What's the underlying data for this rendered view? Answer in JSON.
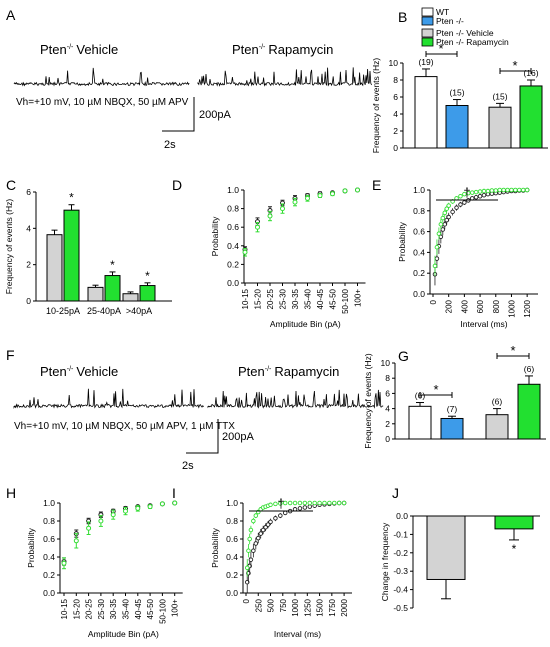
{
  "panel_letters": [
    "A",
    "B",
    "C",
    "D",
    "E",
    "F",
    "G",
    "H",
    "I",
    "J"
  ],
  "traces": {
    "A": {
      "vehicle_prefix": "Pten",
      "vehicle_sup": "-/-",
      "vehicle_suffix": "Vehicle",
      "rapa_prefix": "Pten",
      "rapa_sup": "-/-",
      "rapa_suffix": "Rapamycin",
      "conditions": "Vh=+10 mV, 10 µM NBQX, 50 µM APV",
      "scale_amp": "200pA",
      "scale_time": "2s"
    },
    "F": {
      "vehicle_prefix": "Pten",
      "vehicle_sup": "-/-",
      "vehicle_suffix": "Vehicle",
      "rapa_prefix": "Pten",
      "rapa_sup": "-/-",
      "rapa_suffix": "Rapamycin",
      "conditions": "Vh=+10 mV, 10 µM NBQX, 50 µM APV, 1 µM TTX",
      "scale_amp": "200pA",
      "scale_time": "2s"
    }
  },
  "legend": {
    "items": [
      {
        "label": "WT",
        "color": "#ffffff"
      },
      {
        "label": "Pten -/-",
        "color": "#3d9be9"
      },
      {
        "label": "Pten -/- Vehicle",
        "color": "#d3d3d3"
      },
      {
        "label": "Pten -/- Rapamycin",
        "color": "#22e030"
      }
    ]
  },
  "colors": {
    "wt": "#ffffff",
    "pten": "#3d9be9",
    "vehicle": "#d3d3d3",
    "rapamycin": "#22e030",
    "vehicle_marker": "#222222",
    "rapamycin_marker": "#33dd33"
  },
  "chart_data": [
    {
      "panel": "B",
      "type": "bar",
      "ylabel": "Frequency of events (Hz)",
      "ylim": [
        0,
        10
      ],
      "yticks": [
        "0",
        "2",
        "4",
        "6",
        "8",
        "10"
      ],
      "categories": [
        "WT",
        "Pten -/-",
        "Pten -/- Vehicle",
        "Pten -/- Rapamycin"
      ],
      "values": [
        8.4,
        5.0,
        4.8,
        7.3
      ],
      "errors": [
        0.9,
        0.7,
        0.45,
        0.7
      ],
      "n_labels": [
        "(19)",
        "(15)",
        "(15)",
        "(16)"
      ],
      "significance": [
        "*",
        "*"
      ]
    },
    {
      "panel": "C",
      "type": "bar",
      "ylabel": "Frequency of events (Hz)",
      "ylim": [
        0,
        6
      ],
      "yticks": [
        "0",
        "2",
        "4",
        "6"
      ],
      "categories": [
        "10-25pA",
        "25-40pA",
        ">40pA"
      ],
      "series": [
        {
          "values": [
            3.65,
            0.75,
            0.4
          ],
          "errors": [
            0.25,
            0.12,
            0.1
          ]
        },
        {
          "values": [
            5.0,
            1.4,
            0.85
          ],
          "errors": [
            0.3,
            0.2,
            0.15
          ]
        }
      ],
      "significance": [
        "*",
        "*",
        "*"
      ]
    },
    {
      "panel": "D",
      "type": "scatter",
      "ylabel": "Probability",
      "xlabel": "Amplitude Bin (pA)",
      "ylim": [
        0,
        1
      ],
      "yticks": [
        "0.0",
        "0.2",
        "0.4",
        "0.6",
        "0.8",
        "1.0"
      ],
      "categories": [
        "10-15",
        "15-20",
        "20-25",
        "25-30",
        "30-35",
        "35-40",
        "40-45",
        "45-50",
        "50-100",
        "100+"
      ],
      "series": [
        {
          "values": [
            0.36,
            0.66,
            0.78,
            0.86,
            0.91,
            0.94,
            0.96,
            0.97,
            0.99,
            1.0
          ],
          "errors": [
            0.03,
            0.04,
            0.04,
            0.03,
            0.03,
            0.02,
            0.02,
            0.01,
            0.01,
            0
          ]
        },
        {
          "values": [
            0.33,
            0.6,
            0.72,
            0.8,
            0.87,
            0.91,
            0.94,
            0.96,
            0.99,
            1.0
          ],
          "errors": [
            0.04,
            0.05,
            0.05,
            0.05,
            0.04,
            0.03,
            0.02,
            0.02,
            0.01,
            0
          ]
        }
      ]
    },
    {
      "panel": "E",
      "type": "scatter",
      "ylabel": "Probability",
      "xlabel": "Interval (ms)",
      "ylim": [
        0,
        1
      ],
      "xlim": [
        0,
        1300
      ],
      "yticks": [
        "0.0",
        "0.2",
        "0.4",
        "0.6",
        "0.8",
        "1.0"
      ],
      "xticks": [
        "0",
        "200",
        "400",
        "600",
        "800",
        "1000",
        "1200"
      ],
      "annotation": "†",
      "series": [
        {
          "x": [
            25,
            50,
            75,
            100,
            125,
            150,
            175,
            200,
            250,
            300,
            350,
            400,
            450,
            500,
            550,
            600,
            650,
            700,
            750,
            800,
            850,
            900,
            950,
            1000,
            1050,
            1100,
            1150,
            1200
          ],
          "values": [
            0.19,
            0.34,
            0.46,
            0.55,
            0.62,
            0.67,
            0.71,
            0.74,
            0.79,
            0.83,
            0.86,
            0.88,
            0.9,
            0.92,
            0.93,
            0.94,
            0.95,
            0.96,
            0.965,
            0.97,
            0.975,
            0.98,
            0.985,
            0.99,
            0.99,
            0.995,
            0.995,
            1.0
          ]
        },
        {
          "x": [
            25,
            50,
            75,
            100,
            125,
            150,
            175,
            200,
            250,
            300,
            350,
            400,
            450,
            500,
            550,
            600,
            650,
            700,
            750,
            800,
            850,
            900,
            950,
            1000,
            1050,
            1100,
            1150,
            1200
          ],
          "values": [
            0.27,
            0.45,
            0.58,
            0.67,
            0.73,
            0.78,
            0.82,
            0.85,
            0.89,
            0.92,
            0.94,
            0.96,
            0.97,
            0.975,
            0.98,
            0.985,
            0.99,
            0.99,
            0.995,
            0.995,
            1.0,
            1.0,
            1.0,
            1.0,
            1.0,
            1.0,
            1.0,
            1.0
          ]
        }
      ]
    },
    {
      "panel": "G",
      "type": "bar",
      "ylabel": "Frequency of events (Hz)",
      "ylim": [
        0,
        10
      ],
      "yticks": [
        "0",
        "2",
        "4",
        "6",
        "8",
        "10"
      ],
      "categories": [
        "WT",
        "Pten -/-",
        "Pten -/- Vehicle",
        "Pten -/- Rapamycin"
      ],
      "values": [
        4.3,
        2.7,
        3.2,
        7.2
      ],
      "errors": [
        0.5,
        0.3,
        0.8,
        1.1
      ],
      "n_labels": [
        "(6)",
        "(7)",
        "(6)",
        "(6)"
      ],
      "significance": [
        "*",
        "*"
      ]
    },
    {
      "panel": "H",
      "type": "scatter",
      "ylabel": "Probability",
      "xlabel": "Amplitude Bin (pA)",
      "ylim": [
        0,
        1
      ],
      "yticks": [
        "0.0",
        "0.2",
        "0.4",
        "0.6",
        "0.8",
        "1.0"
      ],
      "categories": [
        "10-15",
        "15-20",
        "20-25",
        "25-30",
        "30-35",
        "35-40",
        "40-45",
        "45-50",
        "50-100",
        "100+"
      ],
      "series": [
        {
          "values": [
            0.35,
            0.66,
            0.8,
            0.87,
            0.91,
            0.94,
            0.96,
            0.97,
            0.99,
            1.0
          ],
          "errors": [
            0.04,
            0.04,
            0.03,
            0.03,
            0.02,
            0.02,
            0.01,
            0.01,
            0.01,
            0
          ]
        },
        {
          "values": [
            0.33,
            0.58,
            0.72,
            0.8,
            0.87,
            0.91,
            0.94,
            0.96,
            0.99,
            1.0
          ],
          "errors": [
            0.06,
            0.08,
            0.07,
            0.06,
            0.05,
            0.04,
            0.03,
            0.02,
            0.01,
            0
          ]
        }
      ]
    },
    {
      "panel": "I",
      "type": "scatter",
      "ylabel": "Probability",
      "xlabel": "Interval (ms)",
      "ylim": [
        0,
        1
      ],
      "xlim": [
        0,
        2100
      ],
      "yticks": [
        "0.0",
        "0.2",
        "0.4",
        "0.6",
        "0.8",
        "1.0"
      ],
      "xticks": [
        "0",
        "250",
        "500",
        "750",
        "1000",
        "1250",
        "1500",
        "1750",
        "2000"
      ],
      "annotation": "†",
      "series": [
        {
          "x": [
            25,
            50,
            75,
            100,
            150,
            200,
            250,
            300,
            350,
            400,
            450,
            500,
            600,
            700,
            800,
            900,
            1000,
            1100,
            1200,
            1300,
            1400,
            1500,
            1600,
            1700,
            1800,
            1900,
            2000
          ],
          "values": [
            0.12,
            0.22,
            0.3,
            0.37,
            0.47,
            0.55,
            0.61,
            0.66,
            0.7,
            0.73,
            0.76,
            0.79,
            0.83,
            0.86,
            0.89,
            0.91,
            0.93,
            0.94,
            0.95,
            0.96,
            0.97,
            0.98,
            0.985,
            0.99,
            0.995,
            1.0,
            1.0
          ]
        },
        {
          "x": [
            25,
            50,
            75,
            100,
            150,
            200,
            250,
            300,
            350,
            400,
            450,
            500,
            600,
            700,
            800,
            900,
            1000,
            1100,
            1200,
            1300,
            1400,
            1500,
            1600,
            1700,
            1800,
            1900,
            2000
          ],
          "values": [
            0.28,
            0.47,
            0.6,
            0.7,
            0.8,
            0.86,
            0.9,
            0.93,
            0.95,
            0.96,
            0.97,
            0.98,
            0.99,
            0.995,
            1.0,
            1.0,
            1.0,
            1.0,
            1.0,
            1.0,
            1.0,
            1.0,
            1.0,
            1.0,
            1.0,
            1.0,
            1.0
          ]
        }
      ]
    },
    {
      "panel": "J",
      "type": "bar",
      "ylabel": "Change in frequency",
      "ylim": [
        -0.5,
        0
      ],
      "yticks": [
        "0.0",
        "-0.1",
        "-0.2",
        "-0.3",
        "-0.4",
        "-0.5"
      ],
      "categories": [
        "Pten -/- Vehicle",
        "Pten -/- Rapamycin"
      ],
      "values": [
        -0.345,
        -0.07
      ],
      "errors": [
        0.105,
        0.06
      ],
      "significance": [
        "*"
      ]
    }
  ]
}
